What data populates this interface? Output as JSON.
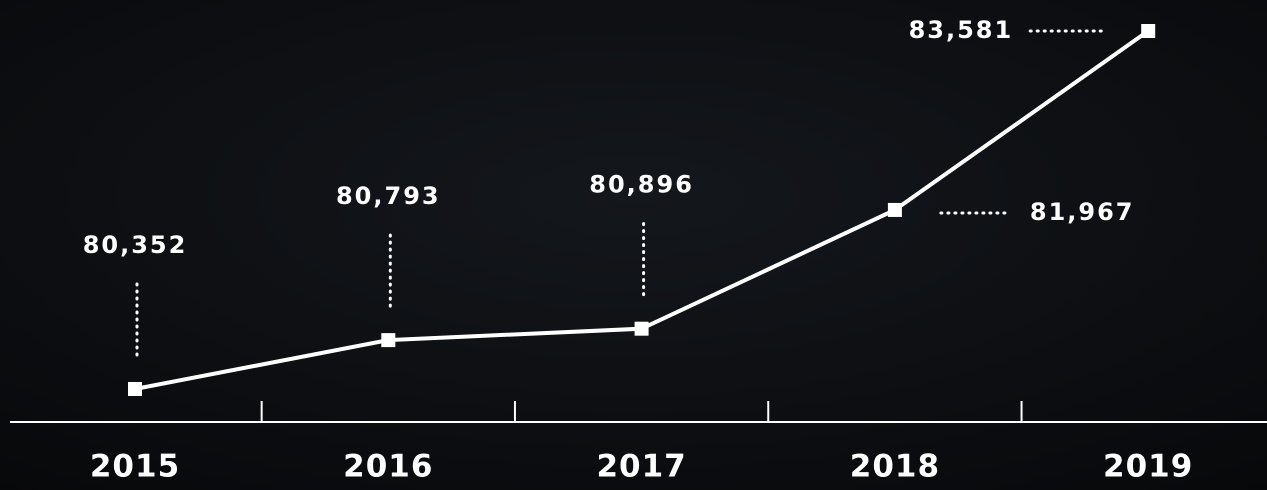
{
  "chart_data": {
    "type": "line",
    "categories": [
      "2015",
      "2016",
      "2017",
      "2018",
      "2019"
    ],
    "values": [
      80352,
      80793,
      80896,
      81967,
      83581
    ],
    "value_labels": [
      "80,352",
      "80,793",
      "80,896",
      "81,967",
      "83,581"
    ],
    "color": "#ffffff"
  }
}
